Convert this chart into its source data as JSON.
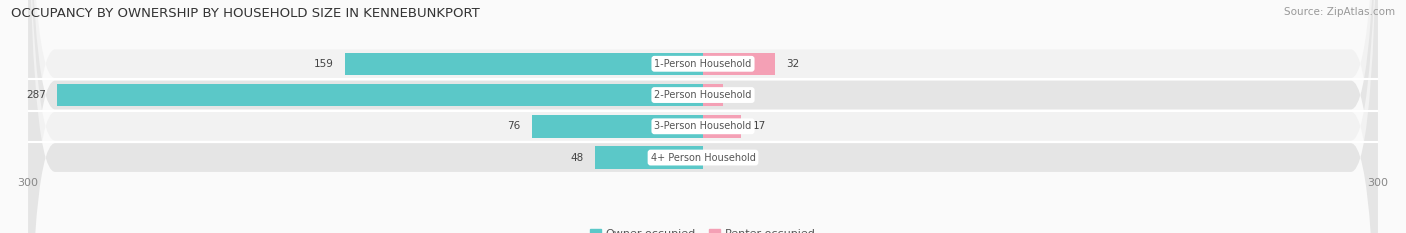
{
  "title": "OCCUPANCY BY OWNERSHIP BY HOUSEHOLD SIZE IN KENNEBUNKPORT",
  "source": "Source: ZipAtlas.com",
  "categories": [
    "1-Person Household",
    "2-Person Household",
    "3-Person Household",
    "4+ Person Household"
  ],
  "owner_values": [
    159,
    287,
    76,
    48
  ],
  "renter_values": [
    32,
    9,
    17,
    0
  ],
  "owner_color": "#5BC8C8",
  "renter_color": "#F4A0B5",
  "row_light_color": "#F2F2F2",
  "row_dark_color": "#E5E5E5",
  "label_bg_color": "#FFFFFF",
  "axis_max": 300,
  "axis_min": -300,
  "title_fontsize": 9.5,
  "source_fontsize": 7.5,
  "tick_fontsize": 8,
  "legend_fontsize": 8,
  "bar_label_fontsize": 7.5,
  "category_label_fontsize": 7.0,
  "background_color": "#FAFAFA"
}
